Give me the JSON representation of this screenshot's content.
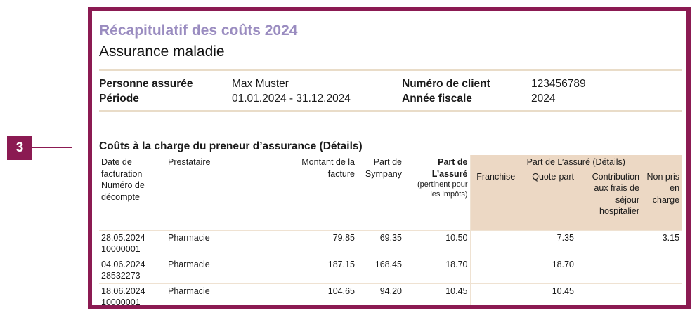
{
  "marker": {
    "number": "3"
  },
  "header": {
    "title": "Récapitulatif des coûts 2024",
    "subtitle": "Assurance maladie"
  },
  "info": {
    "insured_label": "Personne assurée",
    "insured_value": "Max Muster",
    "period_label": "Période",
    "period_value": "01.01.2024 - 31.12.2024",
    "client_label": "Numéro de client",
    "client_value": "123456789",
    "fiscal_label": "Année fiscale",
    "fiscal_value": "2024"
  },
  "section": {
    "title": "Coûts à la charge du preneur d’assurance (Détails)"
  },
  "table": {
    "headers": {
      "date_line1": "Date de",
      "date_line2": "facturation",
      "date_line3": "Numéro de",
      "date_line4": "décompte",
      "provider": "Prestataire",
      "invoice_line1": "Montant de la",
      "invoice_line2": "facture",
      "sympany_line1": "Part de",
      "sympany_line2": "Sympany",
      "insured_share_line1": "Part de",
      "insured_share_line2": "L’assuré",
      "insured_share_note1": "(pertinent pour",
      "insured_share_note2": "les impôts)",
      "group": "Part de L’assuré (Détails)",
      "franchise": "Franchise",
      "quote_part": "Quote-part",
      "contribution_line1": "Contribution",
      "contribution_line2": "aux frais de",
      "contribution_line3": "séjour",
      "contribution_line4": "hospitalier",
      "not_covered_line1": "Non pris",
      "not_covered_line2": "en charge"
    },
    "rows": [
      {
        "date": "28.05.2024",
        "number": "10000001",
        "provider": "Pharmacie",
        "invoice": "79.85",
        "sympany": "69.35",
        "insured": "10.50",
        "franchise": "",
        "quote_part": "7.35",
        "contribution": "",
        "not_covered": "3.15"
      },
      {
        "date": "04.06.2024",
        "number": "28532273",
        "provider": "Pharmacie",
        "invoice": "187.15",
        "sympany": "168.45",
        "insured": "18.70",
        "franchise": "",
        "quote_part": "18.70",
        "contribution": "",
        "not_covered": ""
      },
      {
        "date": "18.06.2024",
        "number": "10000001",
        "provider": "Pharmacie",
        "invoice": "104.65",
        "sympany": "94.20",
        "insured": "10.45",
        "franchise": "",
        "quote_part": "10.45",
        "contribution": "",
        "not_covered": ""
      }
    ]
  },
  "colors": {
    "frame": "#8b1a52",
    "title": "#9a8cc0",
    "detail_header_bg": "#ecd8c4"
  }
}
